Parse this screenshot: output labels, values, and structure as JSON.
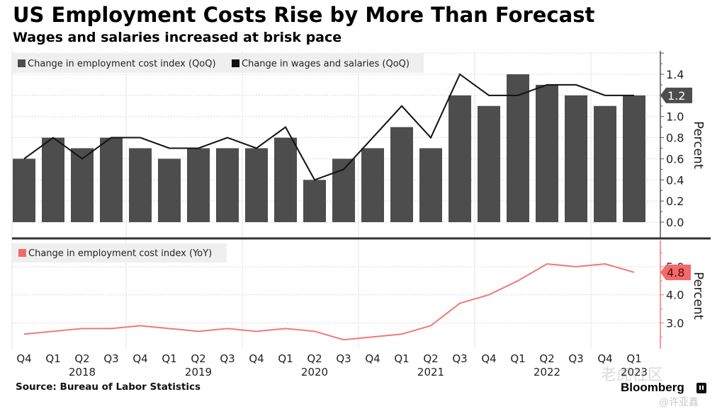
{
  "header": {
    "title": "US Employment Costs Rise by More Than Forecast",
    "subtitle": "Wages and salaries increased at brisk pace"
  },
  "footer": {
    "source": "Source: Bureau of Labor Statistics",
    "brand": "Bloomberg",
    "watermark": "老虎社区",
    "watermark_handle": "@许亚鑫"
  },
  "colors": {
    "bar": "#4d4d4d",
    "wages_line": "#111111",
    "yoy_line": "#f07878",
    "yoy_marker": "#f26a6a",
    "grid": "#d8d8d8",
    "legend_bg": "#efefef"
  },
  "chart_data": [
    {
      "type": "bar",
      "panel": "top",
      "title": "US Employment Costs Rise by More Than Forecast",
      "subtitle": "Wages and salaries increased at brisk pace",
      "categories": [
        "Q4 2017",
        "Q1 2018",
        "Q2 2018",
        "Q3 2018",
        "Q4 2018",
        "Q1 2019",
        "Q2 2019",
        "Q3 2019",
        "Q4 2019",
        "Q1 2020",
        "Q2 2020",
        "Q3 2020",
        "Q4 2020",
        "Q1 2021",
        "Q2 2021",
        "Q3 2021",
        "Q4 2021",
        "Q1 2022",
        "Q2 2022",
        "Q3 2022",
        "Q4 2022",
        "Q1 2023"
      ],
      "series": [
        {
          "name": "Change in employment cost index (QoQ)",
          "kind": "bar",
          "values": [
            0.6,
            0.8,
            0.7,
            0.8,
            0.7,
            0.6,
            0.7,
            0.7,
            0.7,
            0.8,
            0.4,
            0.6,
            0.7,
            0.9,
            0.7,
            1.2,
            1.1,
            1.4,
            1.3,
            1.2,
            1.1,
            1.2
          ]
        },
        {
          "name": "Change in wages and salaries (QoQ)",
          "kind": "line",
          "values": [
            0.6,
            0.8,
            0.6,
            0.8,
            0.8,
            0.7,
            0.7,
            0.8,
            0.7,
            0.9,
            0.4,
            0.5,
            0.8,
            1.1,
            0.8,
            1.4,
            1.2,
            1.2,
            1.3,
            1.3,
            1.2,
            1.2
          ]
        }
      ],
      "ylabel": "Percent",
      "ylim": [
        0,
        1.6
      ],
      "yticks": [
        "0.0",
        "0.2",
        "0.4",
        "0.6",
        "0.8",
        "1.0",
        "1.2",
        "1.4"
      ],
      "last_value_label": "1.2",
      "grid": true,
      "legend": "top-left"
    },
    {
      "type": "line",
      "panel": "bottom",
      "categories": [
        "Q4 2017",
        "Q1 2018",
        "Q2 2018",
        "Q3 2018",
        "Q4 2018",
        "Q1 2019",
        "Q2 2019",
        "Q3 2019",
        "Q4 2019",
        "Q1 2020",
        "Q2 2020",
        "Q3 2020",
        "Q4 2020",
        "Q1 2021",
        "Q2 2021",
        "Q3 2021",
        "Q4 2021",
        "Q1 2022",
        "Q2 2022",
        "Q3 2022",
        "Q4 2022",
        "Q1 2023"
      ],
      "series": [
        {
          "name": "Change in employment cost index (YoY)",
          "values": [
            2.6,
            2.7,
            2.8,
            2.8,
            2.9,
            2.8,
            2.7,
            2.8,
            2.7,
            2.8,
            2.7,
            2.4,
            2.5,
            2.6,
            2.9,
            3.7,
            4.0,
            4.5,
            5.1,
            5.0,
            5.1,
            4.8
          ]
        }
      ],
      "ylabel": "Percent",
      "ylim": [
        2.0,
        6.0
      ],
      "yticks": [
        "3.0",
        "4.0",
        "5.0"
      ],
      "last_value_label": "4.8",
      "grid": true,
      "legend": "top-left"
    }
  ],
  "x_axis": {
    "quarter_labels": [
      "Q4",
      "Q1",
      "Q2",
      "Q3",
      "Q4",
      "Q1",
      "Q2",
      "Q3",
      "Q4",
      "Q1",
      "Q2",
      "Q3",
      "Q4",
      "Q1",
      "Q2",
      "Q3",
      "Q4",
      "Q1",
      "Q2",
      "Q3",
      "Q4",
      "Q1"
    ],
    "years": [
      {
        "label": "2018",
        "center_index": 2
      },
      {
        "label": "2019",
        "center_index": 6
      },
      {
        "label": "2020",
        "center_index": 10
      },
      {
        "label": "2021",
        "center_index": 14
      },
      {
        "label": "2022",
        "center_index": 18
      },
      {
        "label": "2023",
        "center_index": 21
      }
    ]
  }
}
